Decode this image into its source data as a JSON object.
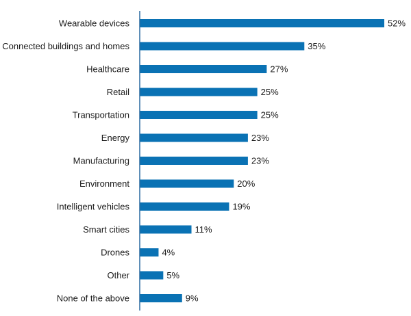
{
  "chart_data": {
    "type": "bar",
    "orientation": "horizontal",
    "categories": [
      "Wearable devices",
      "Connected buildings and homes",
      "Healthcare",
      "Retail",
      "Transportation",
      "Energy",
      "Manufacturing",
      "Environment",
      "Intelligent vehicles",
      "Smart cities",
      "Drones",
      "Other",
      "None of the above"
    ],
    "values": [
      52,
      35,
      27,
      25,
      25,
      23,
      23,
      20,
      19,
      11,
      4,
      5,
      9
    ],
    "value_labels": [
      "52%",
      "35%",
      "27%",
      "25%",
      "25%",
      "23%",
      "23%",
      "20%",
      "19%",
      "11%",
      "4%",
      "5%",
      "9%"
    ],
    "unit": "%",
    "xlim": [
      0,
      52
    ],
    "grid": false,
    "legend": "none",
    "bar_color": "#0a72b4",
    "axis_color": "#2a6aa0"
  }
}
